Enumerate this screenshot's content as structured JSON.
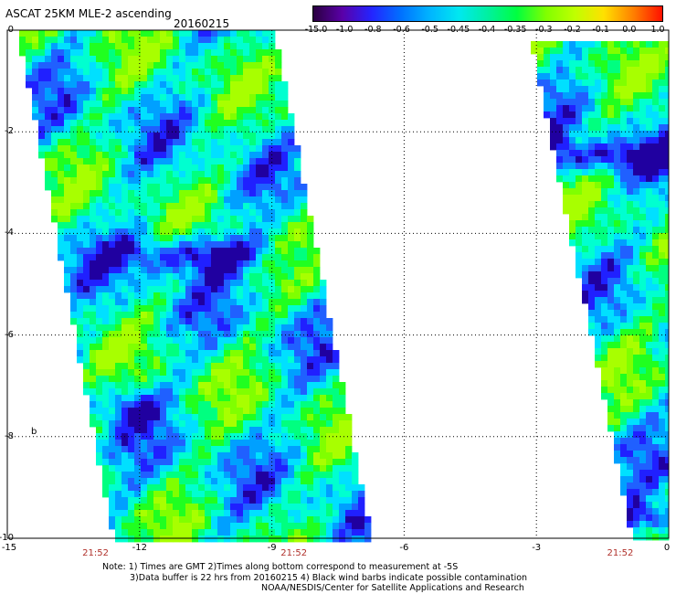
{
  "header": {
    "title": "ASCAT 25KM MLE-2 ascending",
    "date": "20160215"
  },
  "colorbar": {
    "labels": [
      "-15.0",
      "-1.0",
      "-0.8",
      "-0.6",
      "-0.5",
      "-0.45",
      "-0.4",
      "-0.35",
      "-0.3",
      "-0.2",
      "-0.1",
      "0.0",
      "1.0"
    ],
    "colors": [
      "#2a0040",
      "#5a00a8",
      "#2424ff",
      "#0070ff",
      "#00b4ff",
      "#00e8f0",
      "#00f0a0",
      "#00ff40",
      "#80ff00",
      "#c0ff00",
      "#ffe000",
      "#ff8000",
      "#ff1000"
    ]
  },
  "map": {
    "y_labels": [
      "0",
      "-2",
      "-4",
      "-6",
      "-8",
      "-10"
    ],
    "y_values": [
      0,
      -2,
      -4,
      -6,
      -8,
      -10
    ],
    "x_labels": [
      "-15",
      "-12",
      "-9",
      "-6",
      "-3",
      "0"
    ],
    "x_values": [
      -15,
      -12,
      -9,
      -6,
      -3,
      0
    ],
    "x_range": [
      -15,
      0
    ],
    "y_range": [
      0,
      -10
    ],
    "times": [
      {
        "label": "21:52",
        "lon": -13.0
      },
      {
        "label": "21:52",
        "lon": -8.5
      },
      {
        "label": "21:52",
        "lon": -1.1
      }
    ],
    "side_letter": "b"
  },
  "notes": {
    "line1": "Note: 1) Times are GMT 2)Times along bottom correspond to measurement at -5S",
    "line2": "3)Data buffer is 22 hrs from 20160215 4) Black wind barbs indicate possible contamination",
    "line3": "NOAA/NESDIS/Center for Satellite Applications and Research"
  }
}
